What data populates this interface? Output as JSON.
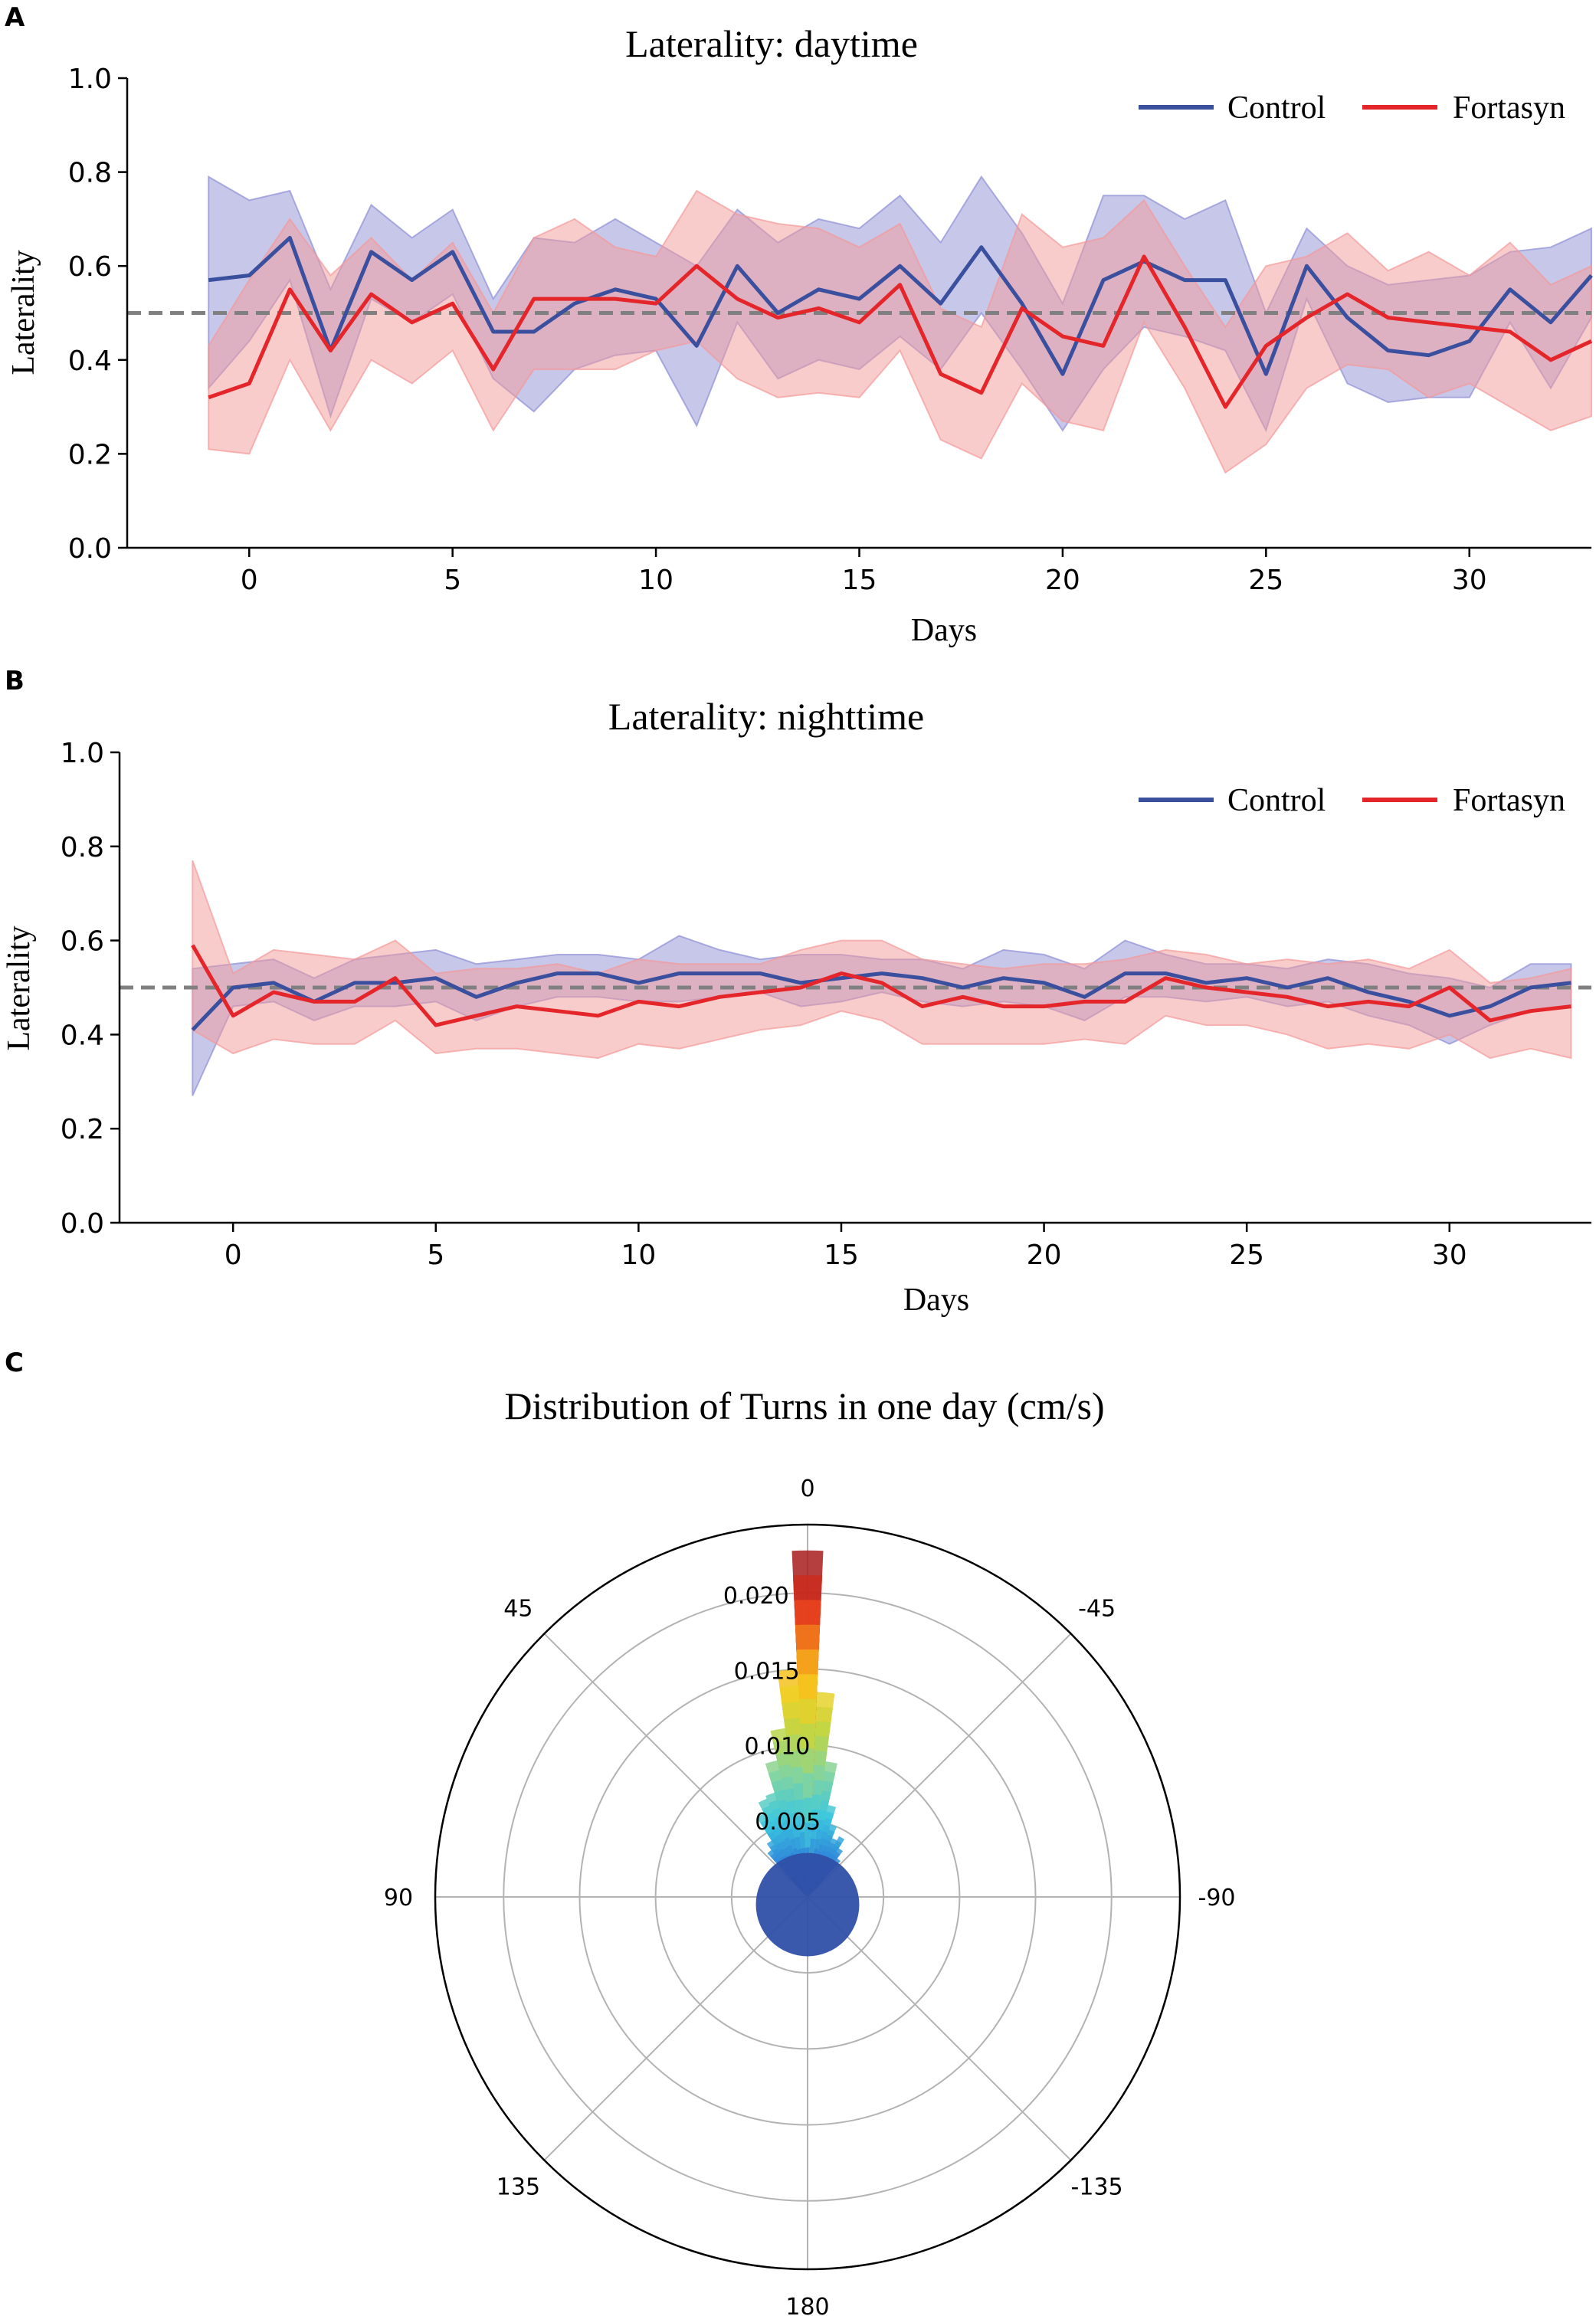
{
  "colors": {
    "control": "#3a4f9e",
    "fortasyn": "#e4262b",
    "control_band": "#8f8fd6",
    "fortasyn_band": "#f49a9a",
    "reference": "#808080",
    "grid": "#b3b3b3"
  },
  "chart_data": [
    {
      "panel": "A",
      "type": "line",
      "title": "Laterality: daytime",
      "xlabel": "Days",
      "ylabel": "Laterality",
      "xlim": [
        -3,
        33
      ],
      "ylim": [
        0.0,
        1.0
      ],
      "xticks": [
        0,
        5,
        10,
        15,
        20,
        25,
        30
      ],
      "xtick_labels": [
        "0",
        "5",
        "10",
        "15",
        "20",
        "25",
        "30"
      ],
      "yticks": [
        0.0,
        0.2,
        0.4,
        0.6,
        0.8,
        1.0
      ],
      "ytick_labels": [
        "0.0",
        "0.2",
        "0.4",
        "0.6",
        "0.8",
        "1.0"
      ],
      "reference_line": 0.5,
      "legend": [
        "Control",
        "Fortasyn"
      ],
      "x": [
        -1,
        0,
        1,
        2,
        3,
        4,
        5,
        6,
        7,
        8,
        9,
        10,
        11,
        12,
        13,
        14,
        15,
        16,
        17,
        18,
        19,
        20,
        21,
        22,
        23,
        24,
        25,
        26,
        27,
        28,
        29,
        30,
        31,
        32,
        33
      ],
      "series": [
        {
          "name": "Control",
          "values": [
            0.57,
            0.58,
            0.66,
            0.42,
            0.63,
            0.57,
            0.63,
            0.46,
            0.46,
            0.52,
            0.55,
            0.53,
            0.43,
            0.6,
            0.5,
            0.55,
            0.53,
            0.6,
            0.52,
            0.64,
            0.52,
            0.37,
            0.57,
            0.61,
            0.57,
            0.57,
            0.37,
            0.6,
            0.49,
            0.42,
            0.41,
            0.44,
            0.55,
            0.48,
            0.58
          ],
          "upper": [
            0.79,
            0.74,
            0.76,
            0.55,
            0.73,
            0.66,
            0.72,
            0.53,
            0.66,
            0.65,
            0.7,
            0.65,
            0.6,
            0.72,
            0.65,
            0.7,
            0.68,
            0.75,
            0.65,
            0.79,
            0.67,
            0.52,
            0.75,
            0.75,
            0.7,
            0.74,
            0.5,
            0.68,
            0.6,
            0.56,
            0.57,
            0.58,
            0.63,
            0.64,
            0.68
          ],
          "lower": [
            0.34,
            0.44,
            0.57,
            0.28,
            0.53,
            0.48,
            0.54,
            0.36,
            0.29,
            0.38,
            0.41,
            0.42,
            0.26,
            0.48,
            0.36,
            0.4,
            0.38,
            0.45,
            0.38,
            0.5,
            0.38,
            0.25,
            0.38,
            0.47,
            0.45,
            0.42,
            0.25,
            0.53,
            0.35,
            0.31,
            0.32,
            0.32,
            0.48,
            0.34,
            0.49
          ]
        },
        {
          "name": "Fortasyn",
          "values": [
            0.32,
            0.35,
            0.55,
            0.42,
            0.54,
            0.48,
            0.52,
            0.38,
            0.53,
            0.53,
            0.53,
            0.52,
            0.6,
            0.53,
            0.49,
            0.51,
            0.48,
            0.56,
            0.37,
            0.33,
            0.51,
            0.45,
            0.43,
            0.62,
            0.47,
            0.3,
            0.43,
            0.49,
            0.54,
            0.49,
            0.48,
            0.47,
            0.46,
            0.4,
            0.44
          ],
          "upper": [
            0.43,
            0.57,
            0.7,
            0.58,
            0.66,
            0.57,
            0.65,
            0.5,
            0.66,
            0.7,
            0.64,
            0.62,
            0.76,
            0.71,
            0.69,
            0.68,
            0.64,
            0.69,
            0.51,
            0.47,
            0.71,
            0.64,
            0.66,
            0.74,
            0.6,
            0.47,
            0.6,
            0.62,
            0.67,
            0.59,
            0.63,
            0.58,
            0.65,
            0.56,
            0.6
          ],
          "lower": [
            0.21,
            0.2,
            0.4,
            0.25,
            0.4,
            0.35,
            0.42,
            0.25,
            0.38,
            0.38,
            0.38,
            0.42,
            0.44,
            0.36,
            0.32,
            0.33,
            0.32,
            0.42,
            0.23,
            0.19,
            0.35,
            0.27,
            0.25,
            0.48,
            0.34,
            0.16,
            0.22,
            0.34,
            0.39,
            0.38,
            0.32,
            0.35,
            0.3,
            0.25,
            0.28
          ]
        }
      ]
    },
    {
      "panel": "B",
      "type": "line",
      "title": "Laterality: nighttime",
      "xlabel": "Days",
      "ylabel": "Laterality",
      "xlim": [
        -2.8,
        33.5
      ],
      "ylim": [
        0.0,
        1.0
      ],
      "xticks": [
        0,
        5,
        10,
        15,
        20,
        25,
        30
      ],
      "xtick_labels": [
        "0",
        "5",
        "10",
        "15",
        "20",
        "25",
        "30"
      ],
      "yticks": [
        0.0,
        0.2,
        0.4,
        0.6,
        0.8,
        1.0
      ],
      "ytick_labels": [
        "0.0",
        "0.2",
        "0.4",
        "0.6",
        "0.8",
        "1.0"
      ],
      "reference_line": 0.5,
      "legend": [
        "Control",
        "Fortasyn"
      ],
      "x": [
        -1,
        0,
        1,
        2,
        3,
        4,
        5,
        6,
        7,
        8,
        9,
        10,
        11,
        12,
        13,
        14,
        15,
        16,
        17,
        18,
        19,
        20,
        21,
        22,
        23,
        24,
        25,
        26,
        27,
        28,
        29,
        30,
        31,
        32,
        33
      ],
      "series": [
        {
          "name": "Control",
          "values": [
            0.41,
            0.5,
            0.51,
            0.47,
            0.51,
            0.51,
            0.52,
            0.48,
            0.51,
            0.53,
            0.53,
            0.51,
            0.53,
            0.53,
            0.53,
            0.51,
            0.52,
            0.53,
            0.52,
            0.5,
            0.52,
            0.51,
            0.48,
            0.53,
            0.53,
            0.51,
            0.52,
            0.5,
            0.52,
            0.49,
            0.47,
            0.44,
            0.46,
            0.5,
            0.51
          ],
          "upper": [
            0.54,
            0.55,
            0.56,
            0.52,
            0.56,
            0.57,
            0.58,
            0.55,
            0.56,
            0.57,
            0.57,
            0.56,
            0.61,
            0.58,
            0.56,
            0.57,
            0.57,
            0.56,
            0.56,
            0.54,
            0.58,
            0.57,
            0.54,
            0.6,
            0.57,
            0.55,
            0.55,
            0.54,
            0.56,
            0.55,
            0.53,
            0.52,
            0.5,
            0.55,
            0.55
          ],
          "lower": [
            0.27,
            0.46,
            0.47,
            0.43,
            0.46,
            0.46,
            0.47,
            0.43,
            0.46,
            0.48,
            0.48,
            0.47,
            0.47,
            0.48,
            0.49,
            0.46,
            0.47,
            0.49,
            0.47,
            0.46,
            0.47,
            0.46,
            0.43,
            0.48,
            0.48,
            0.47,
            0.48,
            0.46,
            0.47,
            0.44,
            0.42,
            0.38,
            0.42,
            0.45,
            0.46
          ]
        },
        {
          "name": "Fortasyn",
          "values": [
            0.59,
            0.44,
            0.49,
            0.47,
            0.47,
            0.52,
            0.42,
            0.44,
            0.46,
            0.45,
            0.44,
            0.47,
            0.46,
            0.48,
            0.49,
            0.5,
            0.53,
            0.51,
            0.46,
            0.48,
            0.46,
            0.46,
            0.47,
            0.47,
            0.52,
            0.5,
            0.49,
            0.48,
            0.46,
            0.47,
            0.46,
            0.5,
            0.43,
            0.45,
            0.46
          ],
          "upper": [
            0.77,
            0.53,
            0.58,
            0.57,
            0.56,
            0.6,
            0.53,
            0.54,
            0.54,
            0.55,
            0.53,
            0.56,
            0.55,
            0.55,
            0.55,
            0.58,
            0.6,
            0.6,
            0.56,
            0.55,
            0.54,
            0.55,
            0.55,
            0.56,
            0.58,
            0.57,
            0.55,
            0.56,
            0.55,
            0.56,
            0.54,
            0.58,
            0.51,
            0.52,
            0.54
          ],
          "lower": [
            0.41,
            0.36,
            0.39,
            0.38,
            0.38,
            0.43,
            0.36,
            0.37,
            0.37,
            0.36,
            0.35,
            0.38,
            0.37,
            0.39,
            0.41,
            0.42,
            0.45,
            0.43,
            0.38,
            0.38,
            0.38,
            0.38,
            0.39,
            0.38,
            0.44,
            0.42,
            0.42,
            0.4,
            0.37,
            0.38,
            0.37,
            0.4,
            0.35,
            0.37,
            0.35
          ]
        }
      ]
    },
    {
      "panel": "C",
      "type": "polar",
      "title": "Distribution of Turns in one day (cm/s)",
      "theta_labels": [
        "0",
        "-45",
        "-90",
        "-135",
        "180",
        "135",
        "90",
        "45"
      ],
      "theta_values": [
        0,
        -45,
        -90,
        -135,
        180,
        135,
        90,
        45
      ],
      "r_ticks": [
        0.005,
        0.01,
        0.015,
        0.02
      ],
      "r_tick_labels": [
        "0.005",
        "0.010",
        "0.015",
        "0.020"
      ],
      "r_max": 0.0245,
      "theta_direction": "counterclockwise from top",
      "bins_deg": [
        -40,
        -35,
        -30,
        -25,
        -20,
        -15,
        -10,
        -5,
        0,
        5,
        10,
        15,
        20,
        25,
        30,
        35,
        40
      ],
      "values": [
        0.0032,
        0.0038,
        0.0045,
        0.0042,
        0.005,
        0.0062,
        0.009,
        0.0135,
        0.0228,
        0.015,
        0.0112,
        0.0092,
        0.0072,
        0.007,
        0.0062,
        0.0044,
        0.0039
      ],
      "central_disk_value": 0.0034,
      "colormap": [
        "#3050a8",
        "#2f80d8",
        "#3ac7e0",
        "#7fd4a4",
        "#bcd648",
        "#f5d020",
        "#f39a1a",
        "#e8361e",
        "#a81c1c"
      ]
    }
  ]
}
